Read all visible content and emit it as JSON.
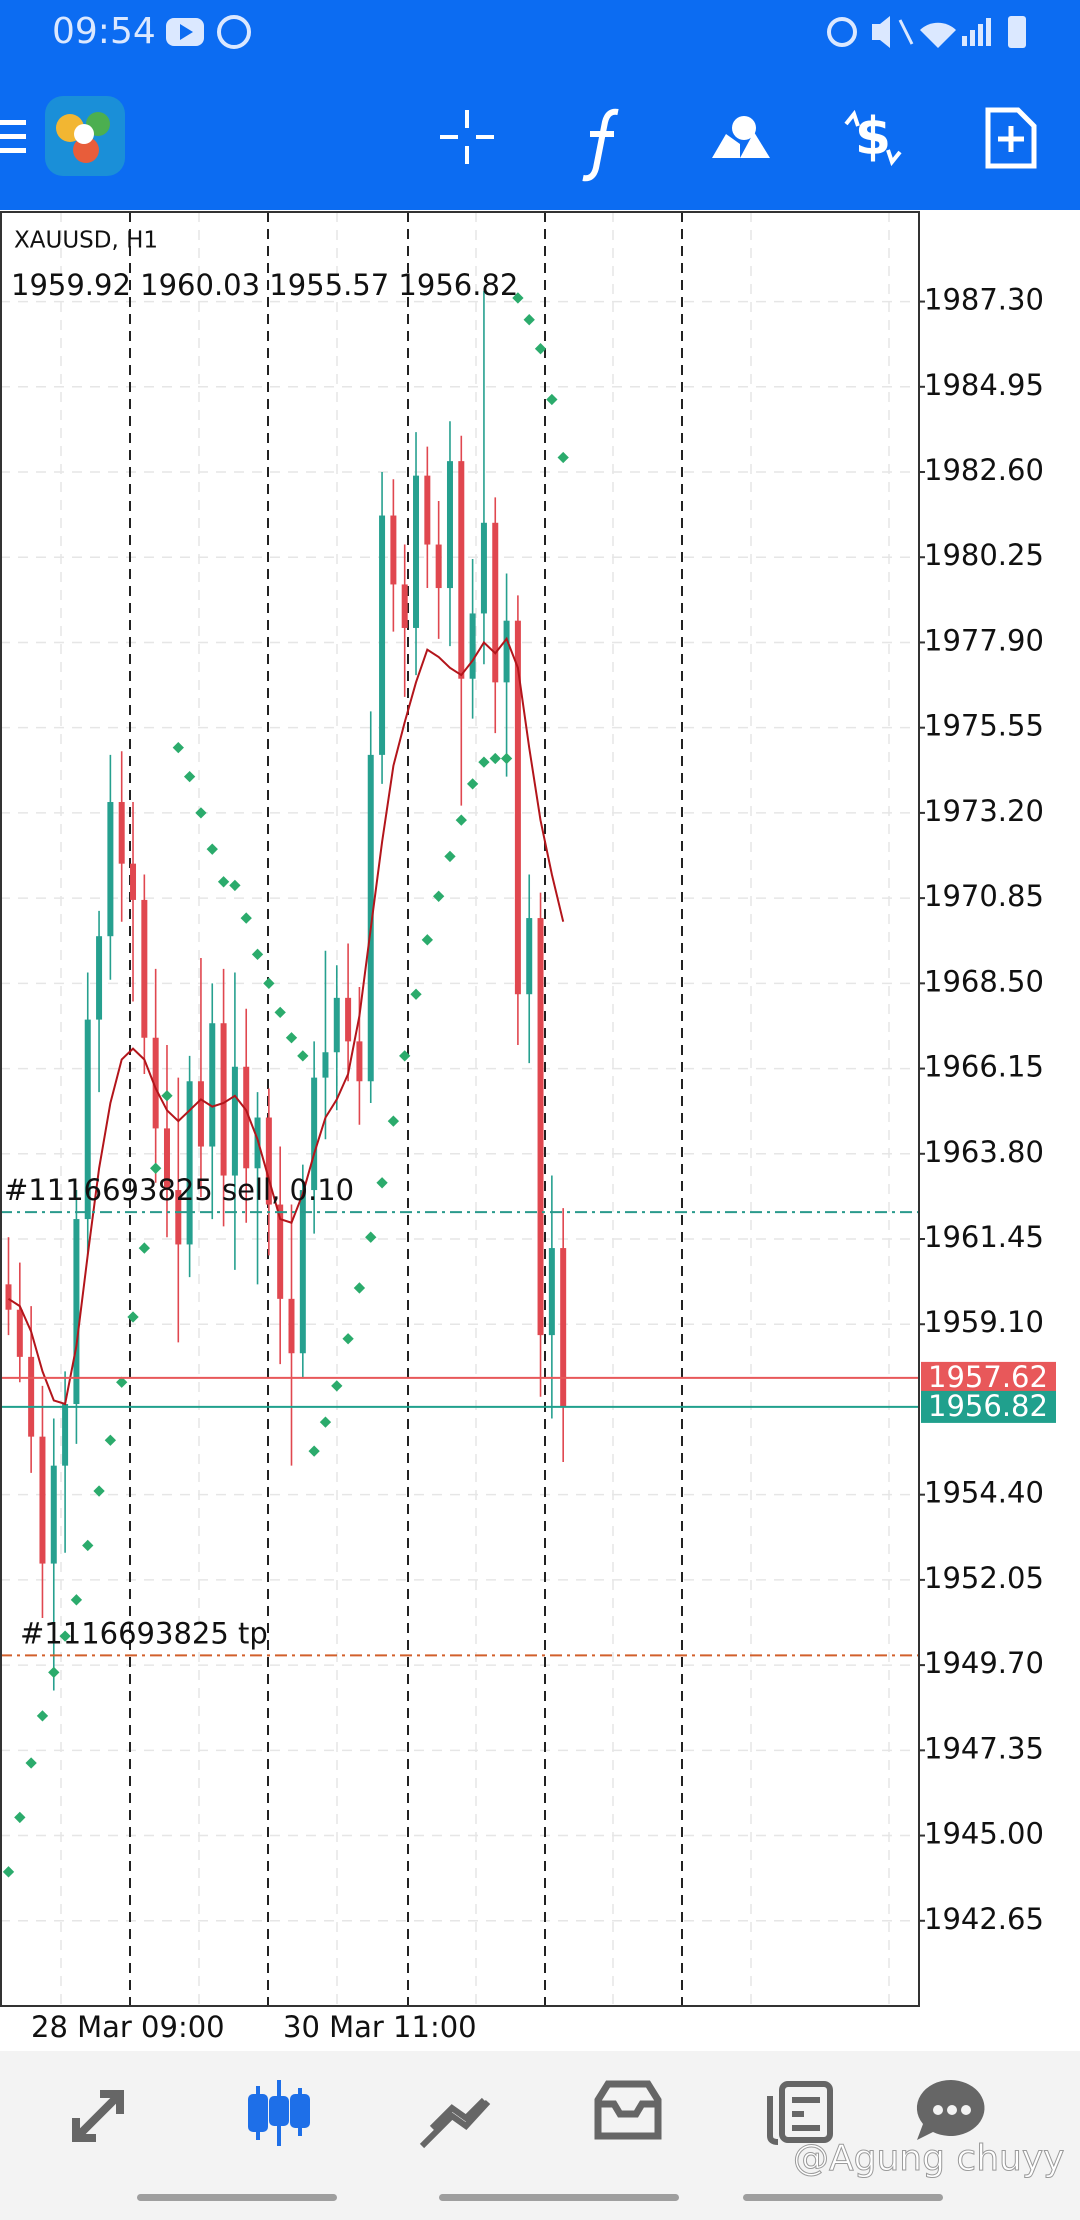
{
  "status_bar": {
    "time": "09:54"
  },
  "watermark": "@Agung chuyy",
  "chart_data": {
    "type": "candlestick",
    "title": "XAUUSD, H1",
    "ohlc_text": "1959.92 1960.03 1955.57 1956.82",
    "ylim": [
      1940.3,
      1989.77
    ],
    "yticks": [
      1942.65,
      {
        "value": 1945.0,
        "label": "1945.00"
      },
      1947.35,
      {
        "value": 1949.7,
        "label": "1949.70"
      },
      1952.05,
      {
        "value": 1954.4,
        "label": "1954.40"
      },
      {
        "value": 1959.1,
        "label": "1959.10"
      },
      1961.45,
      {
        "value": 1963.8,
        "label": "1963.80"
      },
      1966.15,
      {
        "value": 1968.5,
        "label": "1968.50"
      },
      1970.85,
      {
        "value": 1973.2,
        "label": "1973.20"
      },
      1975.55,
      {
        "value": 1977.9,
        "label": "1977.90"
      },
      1980.25,
      {
        "value": 1982.6,
        "label": "1982.60"
      },
      1984.95,
      {
        "value": 1987.3,
        "label": "1987.30"
      }
    ],
    "grid": true,
    "time_labels": [
      "28 Mar 09:00",
      "30 Mar 11:00"
    ],
    "up_color": "#26a08f",
    "down_color": "#e0474f",
    "open": [
      1960.2,
      1959.5,
      1958.2,
      1956.0,
      1952.5,
      1955.2,
      1956.9,
      1962.0,
      1967.5,
      1969.8,
      1973.5,
      1971.8,
      1970.8,
      1967.0,
      1964.5,
      1962.8,
      1961.3,
      1965.8,
      1964.0,
      1967.4,
      1963.2,
      1966.2,
      1963.4,
      1964.8,
      1962.4,
      1959.8,
      1958.3,
      1962.8,
      1965.9,
      1966.6,
      1968.1,
      1966.9,
      1965.8,
      1974.8,
      1981.4,
      1979.5,
      1978.3,
      1982.5,
      1980.6,
      1979.4,
      1982.9,
      1976.9,
      1978.7,
      1981.2,
      1976.8,
      1978.5,
      1968.2,
      1970.3,
      1958.8,
      1961.2
    ],
    "high": [
      1961.5,
      1960.8,
      1959.6,
      1957.4,
      1956.5,
      1957.8,
      1962.8,
      1968.8,
      1970.5,
      1974.8,
      1974.9,
      1973.5,
      1971.5,
      1968.9,
      1966.8,
      1965.9,
      1966.5,
      1969.2,
      1968.5,
      1968.9,
      1968.8,
      1967.8,
      1965.5,
      1965.6,
      1964.0,
      1962.4,
      1963.5,
      1966.9,
      1969.4,
      1969.0,
      1969.6,
      1968.4,
      1976.0,
      1982.6,
      1982.4,
      1980.6,
      1983.7,
      1983.3,
      1981.8,
      1984.0,
      1983.6,
      1980.2,
      1987.6,
      1981.9,
      1979.8,
      1979.2,
      1971.5,
      1971.0,
      1963.2,
      1962.3
    ],
    "low": [
      1958.8,
      1957.5,
      1955.0,
      1951.0,
      1949.0,
      1952.8,
      1955.8,
      1961.0,
      1965.5,
      1968.6,
      1970.2,
      1968.0,
      1966.0,
      1963.0,
      1961.5,
      1958.6,
      1960.4,
      1962.6,
      1962.0,
      1961.8,
      1960.6,
      1961.9,
      1960.2,
      1961.0,
      1958.0,
      1955.2,
      1957.6,
      1961.6,
      1964.2,
      1965.0,
      1965.8,
      1964.6,
      1965.2,
      1974.0,
      1978.2,
      1976.4,
      1977.0,
      1979.4,
      1978.0,
      1977.8,
      1973.4,
      1975.8,
      1977.3,
      1975.4,
      1974.2,
      1966.8,
      1966.3,
      1957.1,
      1956.5,
      1955.3
    ],
    "close": [
      1959.5,
      1958.2,
      1956.0,
      1952.5,
      1955.2,
      1956.9,
      1962.0,
      1967.5,
      1969.8,
      1973.5,
      1971.8,
      1970.8,
      1967.0,
      1964.5,
      1962.8,
      1961.3,
      1965.8,
      1964.0,
      1967.4,
      1963.2,
      1966.2,
      1963.4,
      1964.8,
      1962.4,
      1959.8,
      1958.3,
      1962.8,
      1965.9,
      1966.6,
      1968.1,
      1966.9,
      1965.8,
      1974.8,
      1981.4,
      1979.5,
      1978.3,
      1982.5,
      1980.6,
      1979.4,
      1982.9,
      1976.9,
      1978.7,
      1981.2,
      1976.8,
      1978.5,
      1968.2,
      1970.3,
      1958.8,
      1961.2,
      1956.82
    ],
    "ma": {
      "color": "#b3151b",
      "values": [
        1959.8,
        1959.6,
        1958.9,
        1957.8,
        1957.0,
        1956.9,
        1958.5,
        1961.0,
        1963.4,
        1965.2,
        1966.4,
        1966.7,
        1966.4,
        1965.6,
        1965.0,
        1964.7,
        1965.0,
        1965.3,
        1965.1,
        1965.2,
        1965.4,
        1965.0,
        1964.2,
        1963.1,
        1962.0,
        1961.9,
        1962.7,
        1963.8,
        1964.8,
        1965.3,
        1966.0,
        1967.6,
        1970.0,
        1972.4,
        1974.5,
        1975.7,
        1976.8,
        1977.7,
        1977.5,
        1977.2,
        1977.0,
        1977.4,
        1977.9,
        1977.6,
        1978.0,
        1977.2,
        1975.0,
        1973.0,
        1971.5,
        1970.2
      ]
    },
    "sar": {
      "color": "#2bab6c",
      "values": [
        1944.0,
        1945.5,
        1947.0,
        1948.3,
        1949.5,
        1950.5,
        1951.5,
        1953.0,
        1954.5,
        1955.9,
        1957.5,
        1959.3,
        1961.2,
        1963.4,
        1965.4,
        1975.0,
        1974.2,
        1973.2,
        1972.2,
        1971.3,
        1971.2,
        1970.3,
        1969.3,
        1968.5,
        1967.7,
        1967.0,
        1966.5,
        1955.6,
        1956.4,
        1957.4,
        1958.7,
        1960.1,
        1961.5,
        1963.0,
        1964.7,
        1966.5,
        1968.2,
        1969.7,
        1970.9,
        1972.0,
        1973.0,
        1974.0,
        1974.6,
        1974.7,
        1974.7,
        1987.4,
        1986.8,
        1986.0,
        1984.6,
        1983.0
      ]
    },
    "ask": {
      "value": 1957.62,
      "color": "#e8585a"
    },
    "bid": {
      "value": 1956.82,
      "color": "#20a08d"
    },
    "orders": [
      {
        "label": "#1116693825 sell, 0.10",
        "price": 1962.19,
        "color": "#2a9a8c"
      },
      {
        "label": "#1116693825 tp",
        "price": 1949.97,
        "color": "#d2602c"
      }
    ]
  }
}
